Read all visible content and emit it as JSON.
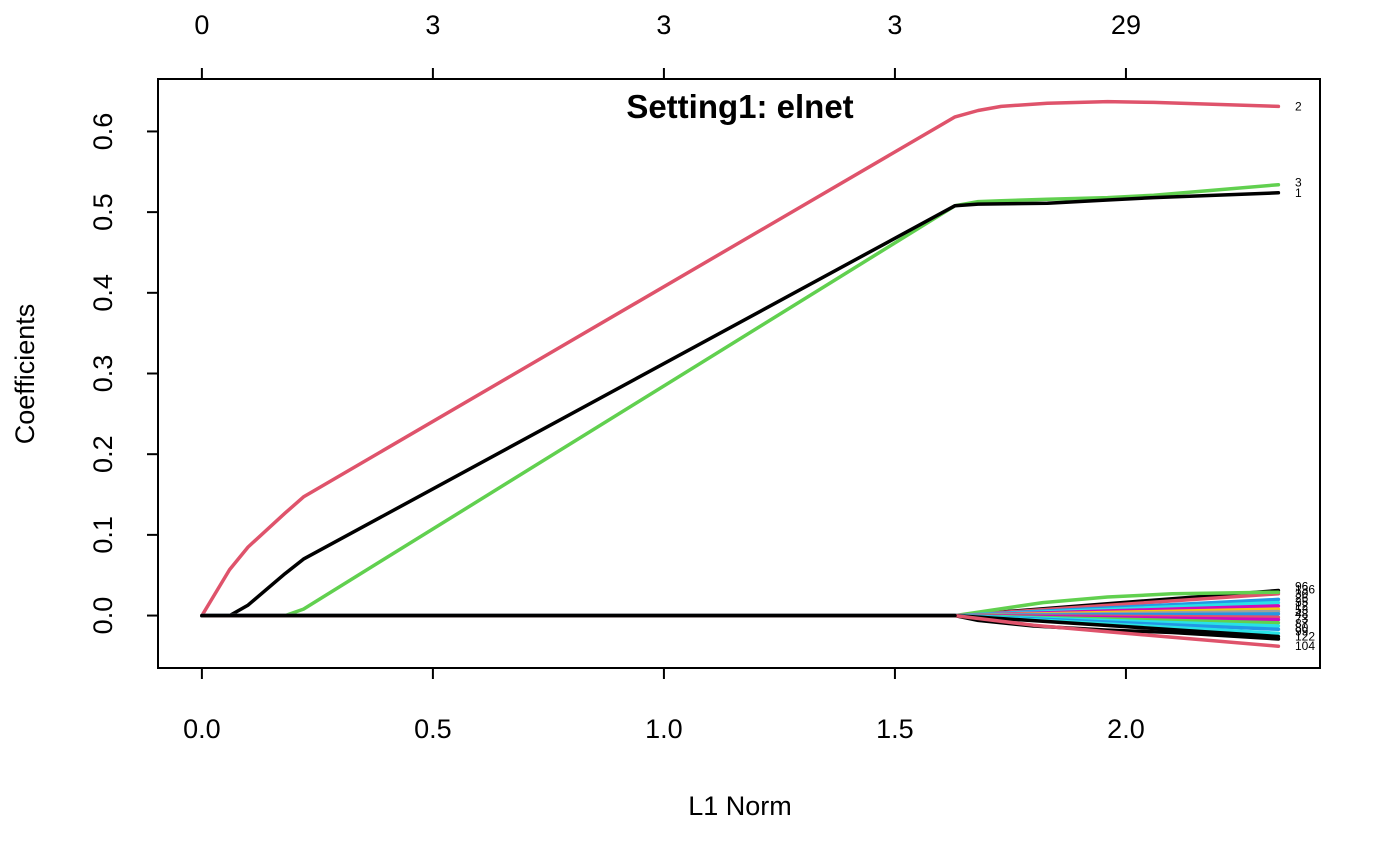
{
  "chart_data": {
    "type": "line",
    "title": "Setting1: elnet",
    "xlabel": "L1 Norm",
    "ylabel": "Coefficients",
    "xlim": [
      -0.095,
      2.42
    ],
    "ylim": [
      -0.065,
      0.665
    ],
    "x_ticks": [
      0.0,
      0.5,
      1.0,
      1.5,
      2.0
    ],
    "x_tick_labels": [
      "0.0",
      "0.5",
      "1.0",
      "1.5",
      "2.0"
    ],
    "y_ticks": [
      0.0,
      0.1,
      0.2,
      0.3,
      0.4,
      0.5,
      0.6
    ],
    "y_tick_labels": [
      "0.0",
      "0.1",
      "0.2",
      "0.3",
      "0.4",
      "0.5",
      "0.6"
    ],
    "top_axis": {
      "ticks": [
        0.0,
        0.5,
        1.0,
        1.5,
        2.0
      ],
      "labels": [
        "0",
        "3",
        "3",
        "3",
        "29"
      ]
    },
    "grid": false,
    "colors": {
      "black": "#000000",
      "red": "#DF536B",
      "green": "#61D04F",
      "blue": "#2297E6",
      "cyan": "#28E2E5",
      "magenta": "#CD0BBC",
      "yellow": "#F5C710",
      "gray": "#9E9E9E"
    },
    "series": [
      {
        "name": "2",
        "color": "#DF536B",
        "x": [
          0.0,
          0.06,
          0.1,
          0.18,
          0.22,
          1.63,
          1.68,
          1.73,
          1.83,
          1.96,
          2.06,
          2.33
        ],
        "y": [
          0.0,
          0.057,
          0.085,
          0.127,
          0.147,
          0.618,
          0.626,
          0.631,
          0.635,
          0.637,
          0.636,
          0.631
        ]
      },
      {
        "name": "3",
        "color": "#61D04F",
        "x": [
          0.0,
          0.18,
          0.22,
          1.63,
          1.68,
          1.73,
          1.83,
          1.96,
          2.06,
          2.33
        ],
        "y": [
          0.0,
          0.0,
          0.008,
          0.508,
          0.513,
          0.514,
          0.516,
          0.518,
          0.521,
          0.534
        ]
      },
      {
        "name": "1",
        "color": "#000000",
        "x": [
          0.0,
          0.06,
          0.1,
          0.18,
          0.22,
          1.63,
          1.68,
          1.83,
          1.96,
          2.06,
          2.33
        ],
        "y": [
          0.0,
          0.0,
          0.013,
          0.052,
          0.07,
          0.508,
          0.51,
          0.511,
          0.515,
          0.518,
          0.524
        ]
      },
      {
        "name": "",
        "color": "#000000",
        "x": [
          0.0,
          1.63,
          2.33
        ],
        "y": [
          0.0,
          0.0,
          0.031
        ]
      },
      {
        "name": "",
        "color": "#DF536B",
        "x": [
          0.0,
          1.63,
          2.33
        ],
        "y": [
          0.0,
          0.0,
          0.027
        ]
      },
      {
        "name": "",
        "color": "#61D04F",
        "x": [
          0.0,
          1.63,
          1.82,
          1.96,
          2.1,
          2.33
        ],
        "y": [
          0.0,
          0.0,
          0.016,
          0.023,
          0.027,
          0.029
        ]
      },
      {
        "name": "",
        "color": "#2297E6",
        "x": [
          0.0,
          1.63,
          2.33
        ],
        "y": [
          0.0,
          0.0,
          0.02
        ]
      },
      {
        "name": "",
        "color": "#28E2E5",
        "x": [
          0.0,
          1.63,
          2.33
        ],
        "y": [
          0.0,
          0.0,
          0.016
        ]
      },
      {
        "name": "",
        "color": "#CD0BBC",
        "x": [
          0.0,
          1.63,
          2.33
        ],
        "y": [
          0.0,
          0.0,
          0.012
        ]
      },
      {
        "name": "",
        "color": "#F5C710",
        "x": [
          0.0,
          1.63,
          2.33
        ],
        "y": [
          0.0,
          0.0,
          0.008
        ]
      },
      {
        "name": "",
        "color": "#9E9E9E",
        "x": [
          0.0,
          1.63,
          2.33
        ],
        "y": [
          0.0,
          0.0,
          0.005
        ]
      },
      {
        "name": "",
        "color": "#2297E6",
        "x": [
          0.0,
          1.63,
          2.33
        ],
        "y": [
          0.0,
          0.0,
          0.002
        ]
      },
      {
        "name": "",
        "color": "#DF536B",
        "x": [
          0.0,
          1.63,
          2.33
        ],
        "y": [
          0.0,
          0.0,
          -0.002
        ]
      },
      {
        "name": "",
        "color": "#CD0BBC",
        "x": [
          0.0,
          1.63,
          2.33
        ],
        "y": [
          0.0,
          0.0,
          -0.005
        ]
      },
      {
        "name": "",
        "color": "#61D04F",
        "x": [
          0.0,
          1.63,
          2.33
        ],
        "y": [
          0.0,
          0.0,
          -0.009
        ]
      },
      {
        "name": "",
        "color": "#28E2E5",
        "x": [
          0.0,
          1.63,
          2.33
        ],
        "y": [
          0.0,
          0.0,
          -0.013
        ]
      },
      {
        "name": "",
        "color": "#2297E6",
        "x": [
          0.0,
          1.63,
          2.33
        ],
        "y": [
          0.0,
          0.0,
          -0.017
        ]
      },
      {
        "name": "",
        "color": "#28E2E5",
        "x": [
          0.0,
          1.63,
          2.33
        ],
        "y": [
          0.0,
          0.0,
          -0.022
        ]
      },
      {
        "name": "",
        "color": "#000000",
        "x": [
          0.0,
          1.63,
          2.33
        ],
        "y": [
          0.0,
          0.0,
          -0.026
        ]
      },
      {
        "name": "",
        "color": "#000000",
        "x": [
          0.0,
          1.63,
          1.68,
          1.8,
          1.96,
          2.1,
          2.33
        ],
        "y": [
          0.0,
          0.0,
          -0.006,
          -0.013,
          -0.018,
          -0.021,
          -0.029
        ]
      },
      {
        "name": "104",
        "color": "#DF536B",
        "x": [
          0.0,
          1.63,
          1.8,
          1.96,
          2.1,
          2.33
        ],
        "y": [
          0.0,
          0.0,
          -0.012,
          -0.02,
          -0.027,
          -0.038
        ]
      },
      {
        "name": "",
        "color": "#000000",
        "x": [
          0.0,
          1.63
        ],
        "y": [
          0.0,
          0.0
        ]
      }
    ],
    "end_labels": [
      {
        "text": "2",
        "y": 0.631
      },
      {
        "text": "3",
        "y": 0.537
      },
      {
        "text": "1",
        "y": 0.524
      },
      {
        "text": "96",
        "y": 0.036
      },
      {
        "text": "136",
        "y": 0.032
      },
      {
        "text": "30",
        "y": 0.027
      },
      {
        "text": "26",
        "y": 0.022
      },
      {
        "text": "35",
        "y": 0.017
      },
      {
        "text": "12",
        "y": 0.012
      },
      {
        "text": "53",
        "y": 0.007
      },
      {
        "text": "48",
        "y": 0.002
      },
      {
        "text": "73",
        "y": -0.004
      },
      {
        "text": "87",
        "y": -0.01
      },
      {
        "text": "80",
        "y": -0.015
      },
      {
        "text": "99",
        "y": -0.02
      },
      {
        "text": "122",
        "y": -0.026
      },
      {
        "text": "104",
        "y": -0.038
      }
    ]
  }
}
